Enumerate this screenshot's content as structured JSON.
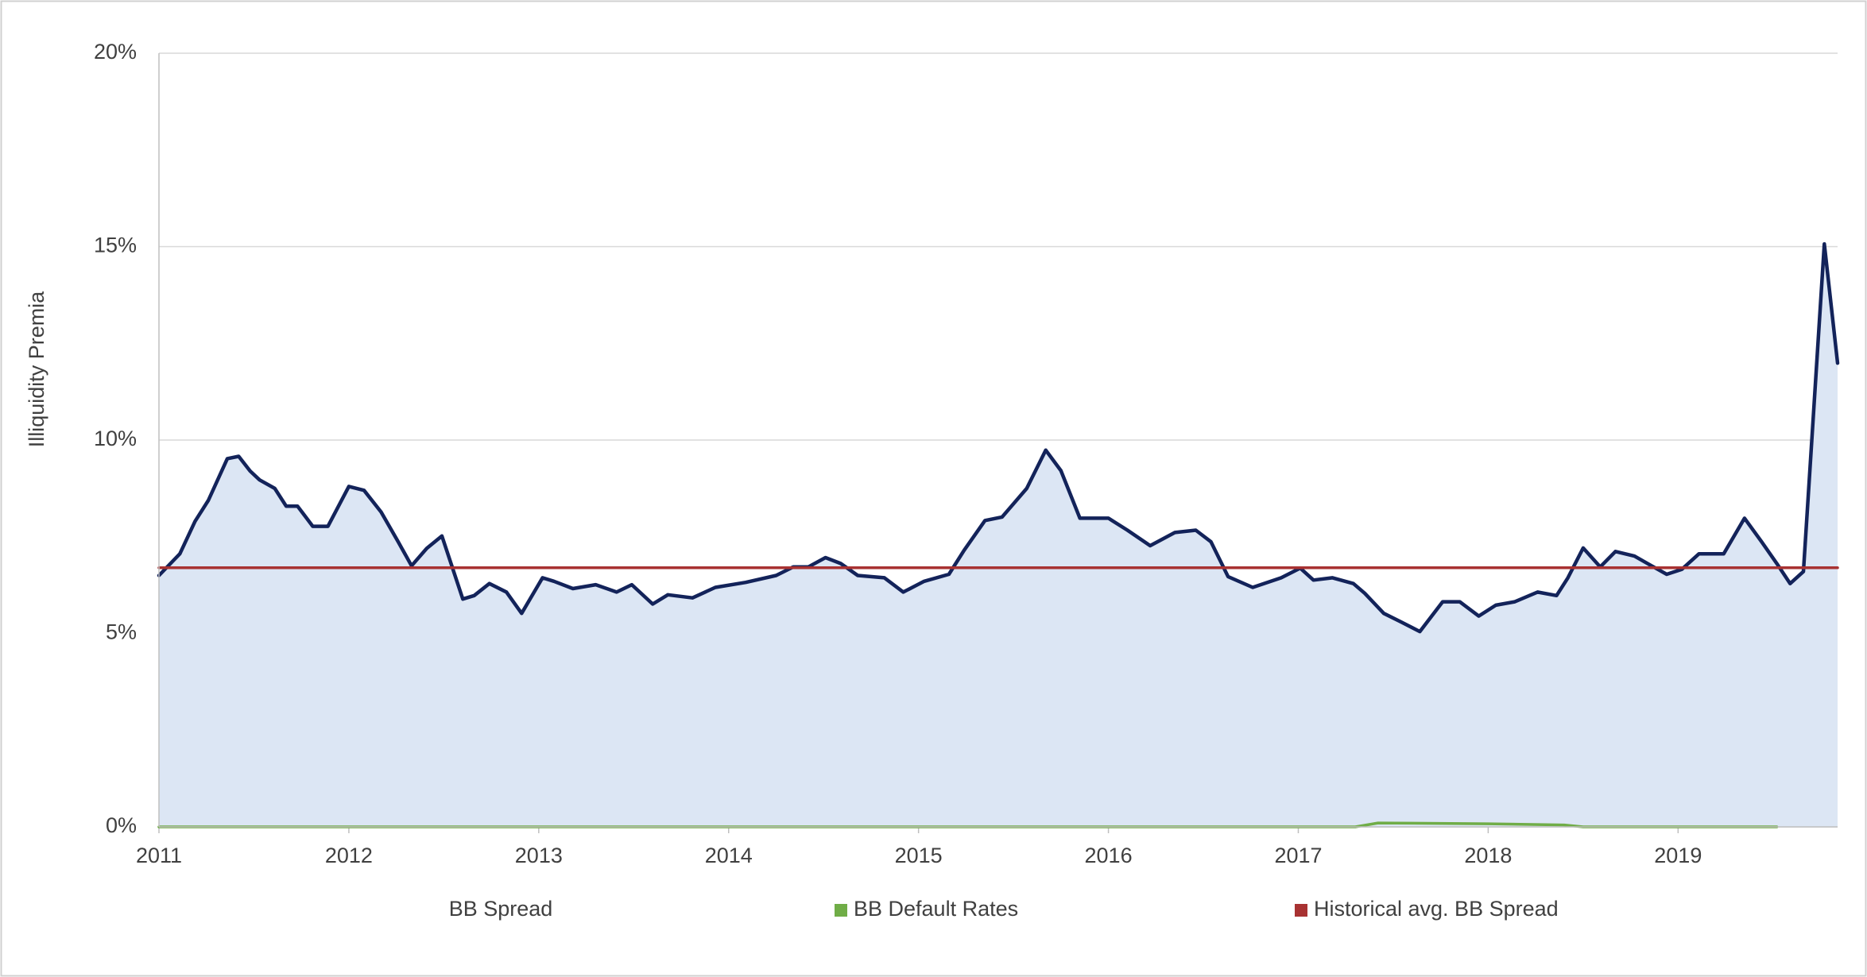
{
  "chart_data": {
    "type": "area-line",
    "y_label": "Illiquidity Premia",
    "xlim": [
      2011,
      2019.84
    ],
    "xticks": [
      2011,
      2012,
      2013,
      2014,
      2015,
      2016,
      2017,
      2018,
      2019
    ],
    "ylim": [
      0,
      20
    ],
    "yticks": [
      {
        "value": 0,
        "label": "0%"
      },
      {
        "value": 5,
        "label": "5%"
      },
      {
        "value": 10,
        "label": "10%"
      },
      {
        "value": 15,
        "label": "15%"
      },
      {
        "value": 20,
        "label": "20%"
      }
    ],
    "grid": true,
    "legend": "bottom",
    "series": [
      {
        "name": "BB Spread",
        "color": "#13235a",
        "fill": "#dce6f4",
        "x": [
          2011.0,
          2011.11,
          2011.19,
          2011.26,
          2011.36,
          2011.42,
          2011.48,
          2011.53,
          2011.61,
          2011.67,
          2011.73,
          2011.81,
          2011.89,
          2012.0,
          2012.08,
          2012.17,
          2012.26,
          2012.33,
          2012.41,
          2012.49,
          2012.6,
          2012.66,
          2012.74,
          2012.83,
          2012.91,
          2013.02,
          2013.08,
          2013.18,
          2013.3,
          2013.41,
          2013.49,
          2013.6,
          2013.68,
          2013.81,
          2013.93,
          2014.09,
          2014.25,
          2014.34,
          2014.42,
          2014.51,
          2014.59,
          2014.68,
          2014.82,
          2014.92,
          2015.03,
          2015.16,
          2015.24,
          2015.35,
          2015.44,
          2015.57,
          2015.67,
          2015.75,
          2015.85,
          2016.0,
          2016.1,
          2016.22,
          2016.35,
          2016.46,
          2016.54,
          2016.63,
          2016.76,
          2016.91,
          2017.01,
          2017.08,
          2017.18,
          2017.29,
          2017.35,
          2017.45,
          2017.54,
          2017.64,
          2017.76,
          2017.85,
          2017.95,
          2018.04,
          2018.14,
          2018.26,
          2018.36,
          2018.42,
          2018.5,
          2018.59,
          2018.67,
          2018.77,
          2018.86,
          2018.94,
          2019.02,
          2019.11,
          2019.24,
          2019.35,
          2019.44,
          2019.52,
          2019.59,
          2019.66,
          2019.77,
          2019.84
        ],
        "values": [
          6.5,
          7.06,
          7.9,
          8.44,
          9.52,
          9.58,
          9.2,
          8.97,
          8.75,
          8.29,
          8.29,
          7.77,
          7.77,
          8.8,
          8.7,
          8.14,
          7.37,
          6.75,
          7.2,
          7.52,
          5.89,
          5.98,
          6.29,
          6.07,
          5.52,
          6.44,
          6.35,
          6.16,
          6.26,
          6.07,
          6.26,
          5.76,
          6.0,
          5.92,
          6.19,
          6.32,
          6.5,
          6.72,
          6.72,
          6.96,
          6.81,
          6.5,
          6.44,
          6.07,
          6.35,
          6.53,
          7.15,
          7.92,
          8.01,
          8.75,
          9.74,
          9.21,
          7.98,
          7.98,
          7.67,
          7.27,
          7.61,
          7.67,
          7.37,
          6.47,
          6.19,
          6.44,
          6.69,
          6.38,
          6.44,
          6.29,
          6.04,
          5.52,
          5.3,
          5.05,
          5.82,
          5.82,
          5.45,
          5.73,
          5.82,
          6.07,
          5.98,
          6.44,
          7.21,
          6.72,
          7.12,
          7.0,
          6.75,
          6.53,
          6.66,
          7.06,
          7.06,
          7.98,
          7.37,
          6.81,
          6.29,
          6.6,
          15.07,
          11.99
        ]
      },
      {
        "name": "BB Default Rates",
        "color": "#70ad47",
        "x": [
          2011.0,
          2017.3,
          2017.42,
          2018.0,
          2018.4,
          2018.5,
          2019.52
        ],
        "values": [
          0,
          0,
          0.1,
          0.08,
          0.05,
          0,
          0
        ]
      },
      {
        "name": "Historical avg. BB Spread",
        "color": "#a83232",
        "x": [
          2011.0,
          2019.84
        ],
        "values": [
          6.7,
          6.7
        ]
      }
    ]
  }
}
